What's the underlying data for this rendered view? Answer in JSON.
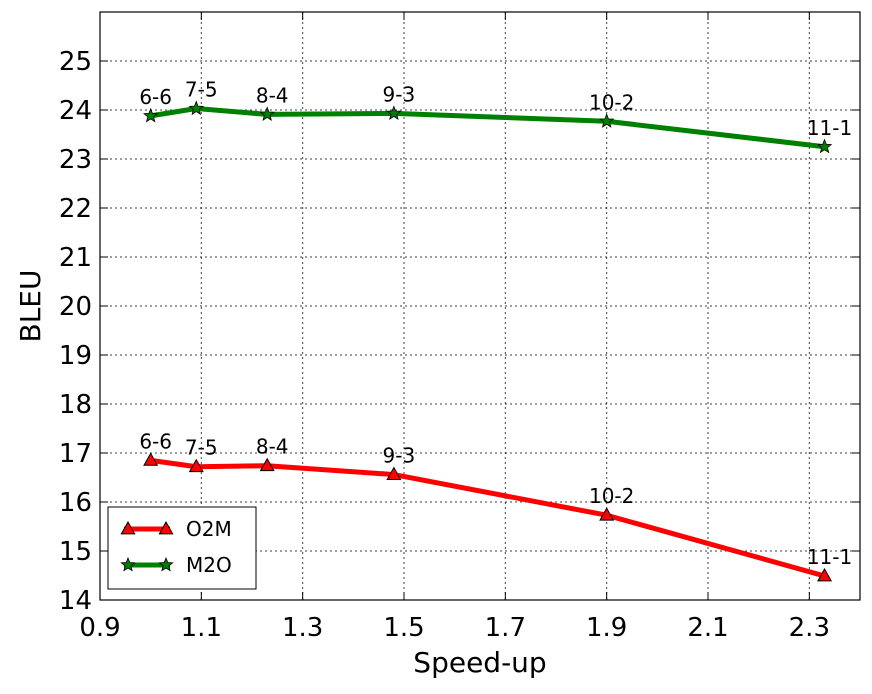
{
  "chart_data": {
    "type": "line",
    "xlabel": "Speed-up",
    "ylabel": "BLEU",
    "xlim": [
      0.9,
      2.4
    ],
    "ylim": [
      14,
      26
    ],
    "xticks": [
      0.9,
      1.1,
      1.3,
      1.5,
      1.7,
      1.9,
      2.1,
      2.3
    ],
    "xtick_labels": [
      "0.9",
      "1.1",
      "1.3",
      "1.5",
      "1.7",
      "1.9",
      "2.1",
      "2.3"
    ],
    "yticks": [
      14,
      15,
      16,
      17,
      18,
      19,
      20,
      21,
      22,
      23,
      24,
      25
    ],
    "ytick_labels": [
      "14",
      "15",
      "16",
      "17",
      "18",
      "19",
      "20",
      "21",
      "22",
      "23",
      "24",
      "25"
    ],
    "grid": true,
    "legend_position": "lower-left",
    "series": [
      {
        "name": "O2M",
        "color": "#ff0000",
        "marker": "triangle",
        "x": [
          1.0,
          1.09,
          1.23,
          1.48,
          1.9,
          2.33
        ],
        "y": [
          16.85,
          16.72,
          16.74,
          16.56,
          15.73,
          14.49
        ],
        "point_labels": [
          "6-6",
          "7-5",
          "8-4",
          "9-3",
          "10-2",
          "11-1"
        ]
      },
      {
        "name": "M2O",
        "color": "#008000",
        "marker": "star",
        "x": [
          1.0,
          1.09,
          1.23,
          1.48,
          1.9,
          2.33
        ],
        "y": [
          23.88,
          24.03,
          23.91,
          23.93,
          23.77,
          23.25
        ],
        "point_labels": [
          "6-6",
          "7-5",
          "8-4",
          "9-3",
          "10-2",
          "11-1"
        ]
      }
    ]
  }
}
